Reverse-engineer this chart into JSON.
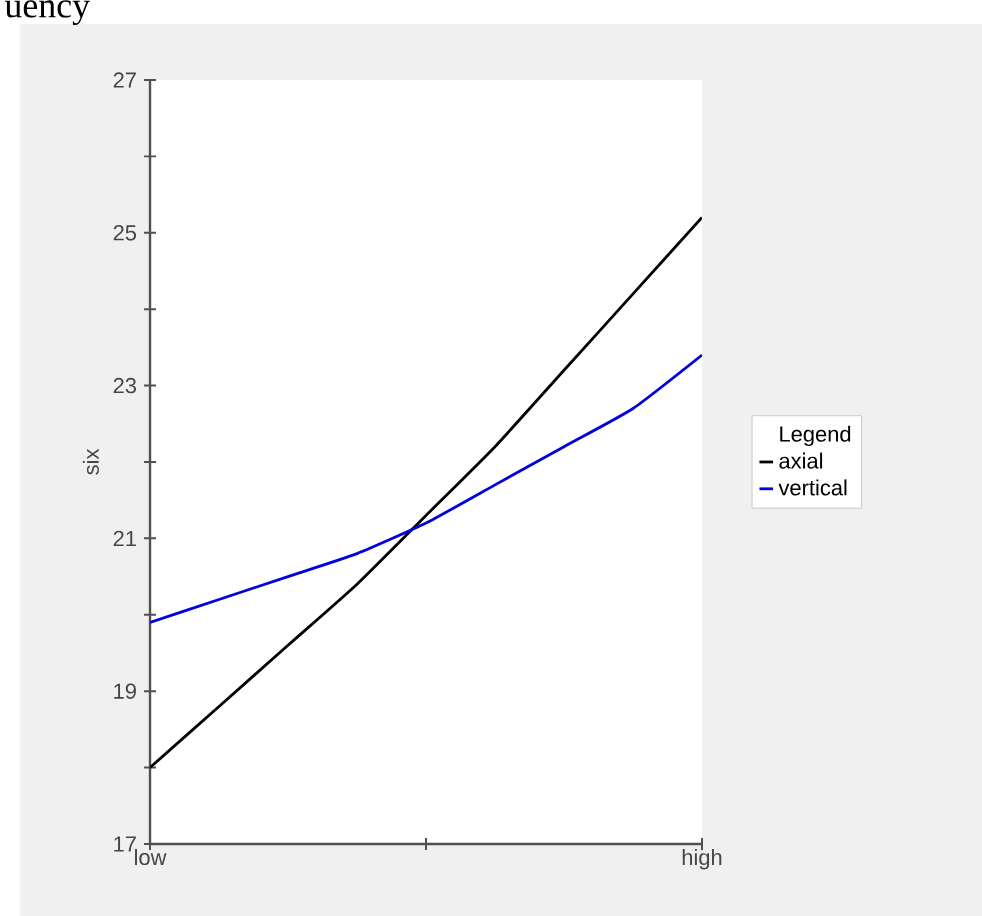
{
  "chart_data": {
    "type": "line",
    "annotations": [
      "uency"
    ],
    "ylabel": "six",
    "legend_title": "Legend",
    "legend": "right",
    "categories": [
      "low",
      null,
      null,
      null,
      null,
      null,
      null,
      null,
      "high"
    ],
    "ylim": [
      17,
      27
    ],
    "yticks": [
      17,
      {
        "value": 18,
        "label": null
      },
      19,
      {
        "value": 20,
        "label": null
      },
      21,
      {
        "value": 22,
        "label": null
      },
      23,
      {
        "value": 24,
        "label": null
      },
      25,
      {
        "value": 26,
        "label": null
      },
      27
    ],
    "series": [
      {
        "name": "axial",
        "color": "#000000",
        "values": [
          18.0,
          18.8,
          19.6,
          20.4,
          21.3,
          22.2,
          23.2,
          24.2,
          25.2
        ]
      },
      {
        "name": "vertical",
        "color": "#0000e0",
        "values": [
          19.9,
          20.2,
          20.5,
          20.8,
          21.2,
          21.7,
          22.2,
          22.7,
          23.4
        ]
      }
    ]
  }
}
